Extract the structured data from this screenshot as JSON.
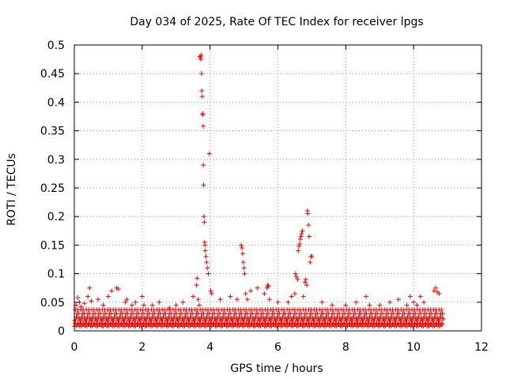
{
  "chart_data": {
    "type": "scatter",
    "title": "Day 034 of 2025, Rate Of TEC Index for receiver lpgs",
    "xlabel": "GPS time / hours",
    "ylabel": "ROTI / TECUs",
    "xlim": [
      0,
      12
    ],
    "ylim": [
      0,
      0.5
    ],
    "x_ticks": [
      0,
      2,
      4,
      6,
      8,
      10,
      12
    ],
    "x_tick_labels": [
      "0",
      "2",
      "4",
      "6",
      "8",
      "10",
      "12"
    ],
    "y_ticks": [
      0,
      0.05,
      0.1,
      0.15,
      0.2,
      0.25,
      0.3,
      0.35,
      0.4,
      0.45,
      0.5
    ],
    "y_tick_labels": [
      "0",
      "0.05",
      "0.1",
      "0.15",
      "0.2",
      "0.25",
      "0.3",
      "0.35",
      "0.4",
      "0.45",
      "0.5"
    ],
    "grid": true,
    "marker": "plus",
    "marker_color": "#ff0000",
    "baseline": {
      "x_range": [
        0.0,
        10.85
      ],
      "step": 0.02,
      "band_values": [
        0.008,
        0.013,
        0.018,
        0.024,
        0.03,
        0.037,
        0.011,
        0.021
      ]
    },
    "series": [
      {
        "name": "ROTI",
        "x": [
          0.05,
          0.1,
          0.15,
          0.2,
          0.3,
          0.4,
          0.45,
          0.5,
          0.7,
          0.85,
          1.0,
          1.1,
          1.25,
          1.3,
          1.5,
          1.55,
          1.7,
          1.8,
          2.0,
          2.05,
          2.3,
          2.5,
          2.8,
          3.0,
          3.2,
          3.5,
          3.6,
          3.62,
          3.65,
          3.68,
          3.7,
          3.72,
          3.73,
          3.74,
          3.75,
          3.76,
          3.77,
          3.78,
          3.79,
          3.8,
          3.8,
          3.81,
          3.82,
          3.83,
          3.84,
          3.85,
          3.86,
          3.88,
          3.9,
          3.92,
          3.95,
          3.98,
          4.02,
          4.05,
          4.3,
          4.6,
          4.8,
          4.92,
          4.94,
          4.96,
          4.98,
          5.0,
          5.02,
          5.05,
          5.1,
          5.2,
          5.4,
          5.6,
          5.68,
          5.7,
          5.72,
          5.75,
          6.0,
          6.3,
          6.4,
          6.5,
          6.52,
          6.54,
          6.58,
          6.6,
          6.62,
          6.64,
          6.66,
          6.68,
          6.7,
          6.72,
          6.75,
          6.8,
          6.82,
          6.85,
          6.87,
          6.88,
          6.9,
          6.92,
          6.95,
          6.97,
          7.0,
          7.3,
          7.6,
          8.0,
          8.3,
          8.6,
          8.7,
          9.0,
          9.3,
          9.55,
          9.8,
          9.9,
          10.0,
          10.1,
          10.2,
          10.3,
          10.6,
          10.65,
          10.7,
          10.75,
          10.85
        ],
        "y": [
          0.045,
          0.058,
          0.05,
          0.042,
          0.048,
          0.06,
          0.075,
          0.052,
          0.055,
          0.045,
          0.06,
          0.07,
          0.075,
          0.073,
          0.05,
          0.055,
          0.045,
          0.05,
          0.06,
          0.045,
          0.045,
          0.05,
          0.04,
          0.045,
          0.05,
          0.06,
          0.08,
          0.092,
          0.055,
          0.045,
          0.48,
          0.478,
          0.475,
          0.482,
          0.45,
          0.42,
          0.41,
          0.38,
          0.378,
          0.358,
          0.29,
          0.255,
          0.2,
          0.19,
          0.155,
          0.15,
          0.14,
          0.13,
          0.12,
          0.11,
          0.1,
          0.31,
          0.07,
          0.065,
          0.055,
          0.06,
          0.055,
          0.15,
          0.145,
          0.135,
          0.12,
          0.11,
          0.1,
          0.065,
          0.055,
          0.07,
          0.075,
          0.065,
          0.075,
          0.08,
          0.078,
          0.055,
          0.05,
          0.05,
          0.06,
          0.065,
          0.1,
          0.095,
          0.09,
          0.14,
          0.148,
          0.152,
          0.16,
          0.165,
          0.17,
          0.175,
          0.06,
          0.085,
          0.09,
          0.08,
          0.21,
          0.205,
          0.185,
          0.165,
          0.12,
          0.13,
          0.13,
          0.05,
          0.045,
          0.045,
          0.05,
          0.06,
          0.045,
          0.045,
          0.05,
          0.055,
          0.045,
          0.06,
          0.05,
          0.045,
          0.06,
          0.05,
          0.07,
          0.075,
          0.068,
          0.065,
          0.03
        ]
      }
    ]
  }
}
